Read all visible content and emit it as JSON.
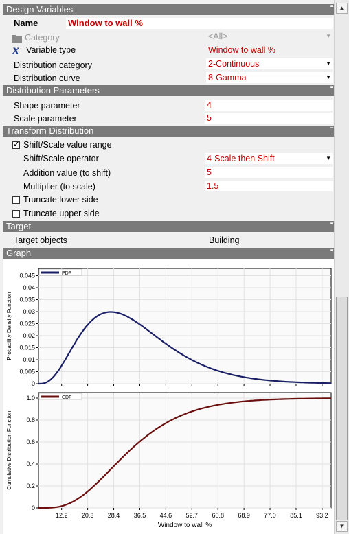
{
  "design_variables": {
    "header": "Design Variables",
    "name_label": "Name",
    "name_value": "Window to wall %",
    "category_label": "Category",
    "category_value": "<All>",
    "variable_type_label": "Variable type",
    "variable_type_value": "Window to wall %",
    "distribution_category_label": "Distribution category",
    "distribution_category_value": "2-Continuous",
    "distribution_curve_label": "Distribution curve",
    "distribution_curve_value": "8-Gamma"
  },
  "distribution_parameters": {
    "header": "Distribution Parameters",
    "shape_label": "Shape parameter",
    "shape_value": "4",
    "scale_label": "Scale parameter",
    "scale_value": "5"
  },
  "transform_distribution": {
    "header": "Transform Distribution",
    "shift_scale_label": "Shift/Scale value range",
    "shift_scale_checked": true,
    "operator_label": "Shift/Scale operator",
    "operator_value": "4-Scale then Shift",
    "addition_label": "Addition value (to shift)",
    "addition_value": "5",
    "multiplier_label": "Multiplier (to scale)",
    "multiplier_value": "1.5",
    "truncate_lower_label": "Truncate lower side",
    "truncate_lower_checked": false,
    "truncate_upper_label": "Truncate upper side",
    "truncate_upper_checked": false
  },
  "target": {
    "header": "Target",
    "objects_label": "Target objects",
    "objects_value": "Building"
  },
  "graph": {
    "header": "Graph"
  },
  "colors": {
    "pdf": "#1a1f66",
    "cdf": "#6b0f0f",
    "value_text": "#c00000",
    "section": "#7a7a7a"
  },
  "chart_data": [
    {
      "type": "line",
      "series": [
        {
          "name": "PDF"
        }
      ],
      "ylabel": "Probability Density Function",
      "xlabel": "",
      "x": [
        5,
        6,
        7,
        8,
        9,
        10,
        11,
        12,
        13,
        14,
        15,
        16,
        17,
        18,
        19,
        20,
        22,
        24,
        26,
        28,
        30,
        32,
        34,
        36,
        38,
        40,
        43,
        46,
        49,
        52,
        55,
        58,
        62,
        66,
        70,
        75,
        80,
        85,
        90,
        96
      ],
      "distribution": {
        "family": "gamma",
        "shape": 4,
        "scale": 7.5,
        "shift": 5
      },
      "xlim": [
        5,
        96
      ],
      "ylim": [
        0,
        0.048
      ],
      "yticks": [
        "0",
        "0.005",
        "0.01",
        "0.015",
        "0.02",
        "0.025",
        "0.03",
        "0.035",
        "0.04",
        "0.045"
      ],
      "grid": true,
      "legend": "top-left"
    },
    {
      "type": "line",
      "series": [
        {
          "name": "CDF"
        }
      ],
      "ylabel": "Cumulative Distribution Function",
      "xlabel": "Window to wall %",
      "distribution": {
        "family": "gamma",
        "shape": 4,
        "scale": 7.5,
        "shift": 5
      },
      "xlim": [
        5,
        96
      ],
      "ylim": [
        0,
        1.05
      ],
      "yticks": [
        "0",
        "0.2",
        "0.4",
        "0.6",
        "0.8",
        "1.0"
      ],
      "xticks": [
        "12.2",
        "20.3",
        "28.4",
        "36.5",
        "44.6",
        "52.7",
        "60.8",
        "68.9",
        "77.0",
        "85.1",
        "93.2"
      ],
      "grid": true,
      "legend": "top-left"
    }
  ]
}
